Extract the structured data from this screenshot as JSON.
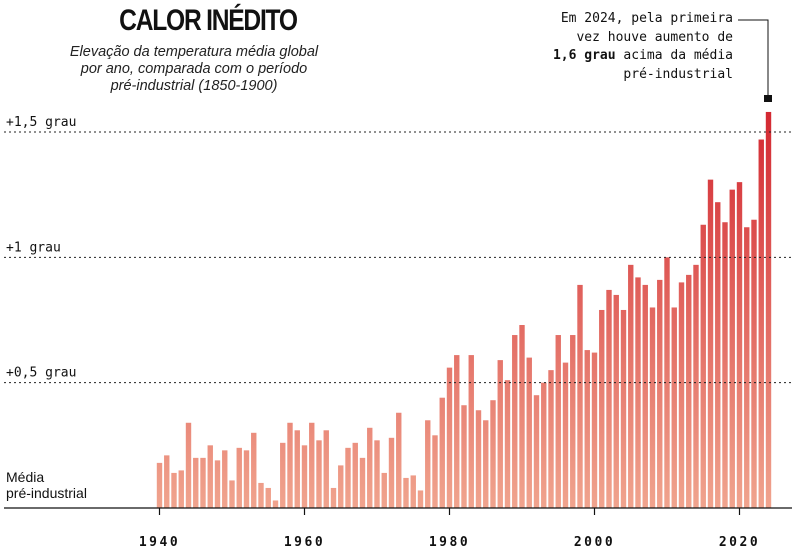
{
  "header": {
    "title": "CALOR INÉDITO",
    "subtitle_lines": [
      "Elevação da temperatura média global",
      "por ano, comparada com o período",
      "pré-industrial (1850-1900)"
    ]
  },
  "annotation": {
    "line1": "Em 2024, pela primeira",
    "line2": "vez houve aumento de",
    "line3_bold": "1,6 grau",
    "line3_rest": " acima da média",
    "line4": "pré-industrial"
  },
  "colors": {
    "low": "#f0a48e",
    "high": "#d32831"
  },
  "chart_data": {
    "type": "bar",
    "title": "CALOR INÉDITO",
    "xlabel": "",
    "ylabel": "",
    "x_start": 1940,
    "x_end": 2024,
    "x": [
      1940,
      1941,
      1942,
      1943,
      1944,
      1945,
      1946,
      1947,
      1948,
      1949,
      1950,
      1951,
      1952,
      1953,
      1954,
      1955,
      1956,
      1957,
      1958,
      1959,
      1960,
      1961,
      1962,
      1963,
      1964,
      1965,
      1966,
      1967,
      1968,
      1969,
      1970,
      1971,
      1972,
      1973,
      1974,
      1975,
      1976,
      1977,
      1978,
      1979,
      1980,
      1981,
      1982,
      1983,
      1984,
      1985,
      1986,
      1987,
      1988,
      1989,
      1990,
      1991,
      1992,
      1993,
      1994,
      1995,
      1996,
      1997,
      1998,
      1999,
      2000,
      2001,
      2002,
      2003,
      2004,
      2005,
      2006,
      2007,
      2008,
      2009,
      2010,
      2011,
      2012,
      2013,
      2014,
      2015,
      2016,
      2017,
      2018,
      2019,
      2020,
      2021,
      2022,
      2023,
      2024
    ],
    "values": [
      0.18,
      0.21,
      0.14,
      0.15,
      0.34,
      0.2,
      0.2,
      0.25,
      0.19,
      0.23,
      0.11,
      0.24,
      0.23,
      0.3,
      0.1,
      0.08,
      0.03,
      0.26,
      0.34,
      0.31,
      0.25,
      0.34,
      0.27,
      0.31,
      0.08,
      0.17,
      0.24,
      0.26,
      0.2,
      0.32,
      0.27,
      0.14,
      0.28,
      0.38,
      0.12,
      0.13,
      0.07,
      0.35,
      0.29,
      0.44,
      0.56,
      0.61,
      0.41,
      0.61,
      0.39,
      0.35,
      0.43,
      0.59,
      0.51,
      0.69,
      0.73,
      0.6,
      0.45,
      0.5,
      0.55,
      0.69,
      0.58,
      0.69,
      0.89,
      0.63,
      0.62,
      0.79,
      0.87,
      0.85,
      0.79,
      0.97,
      0.92,
      0.89,
      0.8,
      0.91,
      1.0,
      0.8,
      0.9,
      0.93,
      0.97,
      1.13,
      1.31,
      1.22,
      1.14,
      1.27,
      1.3,
      1.12,
      1.15,
      1.47,
      1.58
    ],
    "ylim": [
      0,
      1.6
    ],
    "grid_lines": [
      0.5,
      1,
      1.5
    ],
    "y_tick_labels": [
      "+0,5 grau",
      "+1 grau",
      "+1,5 grau"
    ],
    "baseline_label_lines": [
      "Média",
      "pré-industrial"
    ],
    "x_ticks": [
      1940,
      1960,
      1980,
      2000,
      2020
    ],
    "x_tick_labels": [
      "1940",
      "1960",
      "1980",
      "2000",
      "2020"
    ]
  }
}
